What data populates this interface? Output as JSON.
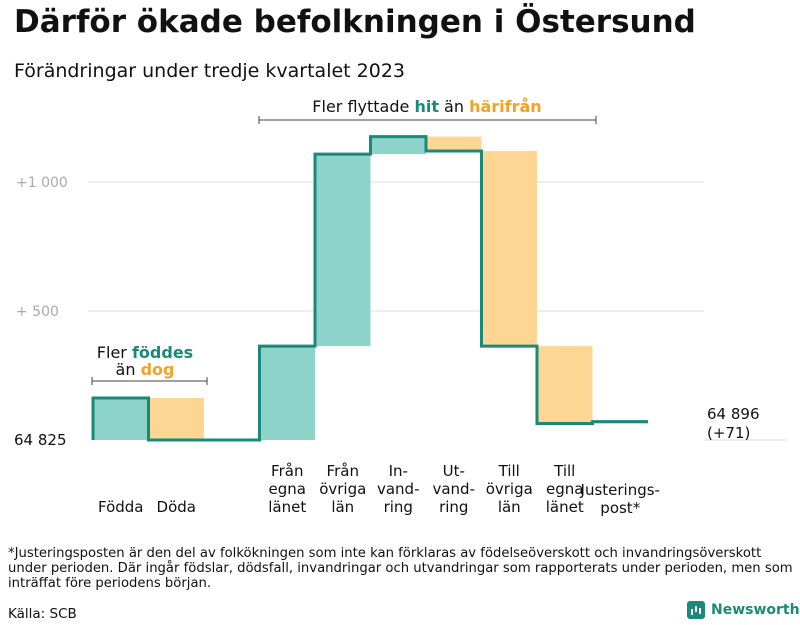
{
  "colors": {
    "positive": "#8dd3c9",
    "negative": "#fcd692",
    "step": "#178a7a",
    "grid": "#dddddd",
    "hit": "#178a7a",
    "harifran": "#f2a227",
    "bracket": "#444444",
    "tick_text": "#aaaaaa"
  },
  "chart_data": {
    "type": "waterfall",
    "title": "Därför ökade befolkningen i Östersund",
    "subtitle": "Förändringar under tredje kvartalet 2023",
    "baseline": {
      "label": "64  825",
      "value": 0
    },
    "end_label": [
      "64 896",
      "(+71)"
    ],
    "ylim": [
      -20,
      1210
    ],
    "yticks": [
      {
        "value": 1000,
        "label": "+1   000"
      },
      {
        "value": 500,
        "label": "+  500"
      }
    ],
    "steps": [
      {
        "label": [
          "Födda"
        ],
        "start": 0,
        "end": 163,
        "sign": "positive"
      },
      {
        "label": [
          "Döda"
        ],
        "start": 163,
        "end": 0,
        "sign": "negative"
      },
      {
        "label": [
          ""
        ],
        "start": 0,
        "end": 0,
        "sign": "positive"
      },
      {
        "label": [
          "Från",
          "egna",
          "länet"
        ],
        "start": 0,
        "end": 364,
        "sign": "positive"
      },
      {
        "label": [
          "Från",
          "övriga",
          "län"
        ],
        "start": 364,
        "end": 1108,
        "sign": "positive"
      },
      {
        "label": [
          "In-",
          "vand-",
          "ring"
        ],
        "start": 1108,
        "end": 1176,
        "sign": "positive"
      },
      {
        "label": [
          "Ut-",
          "vand-",
          "ring"
        ],
        "start": 1176,
        "end": 1120,
        "sign": "negative"
      },
      {
        "label": [
          "Till",
          "övriga",
          "län"
        ],
        "start": 1120,
        "end": 364,
        "sign": "negative"
      },
      {
        "label": [
          "Till",
          "egna",
          "länet"
        ],
        "start": 364,
        "end": 64,
        "sign": "negative"
      },
      {
        "label": [
          "Justerings-",
          "post*"
        ],
        "start": 64,
        "end": 71,
        "sign": "positive"
      }
    ],
    "annotations": [
      {
        "name": "births-annotation",
        "lines": [
          [
            "Fler ",
            "föddes"
          ],
          [
            "än ",
            "dog"
          ]
        ]
      },
      {
        "name": "migration-annotation",
        "lines": [
          [
            "Fler flyttade ",
            "hit",
            " än ",
            "härifrån"
          ]
        ]
      }
    ]
  },
  "footnote": "*Justeringsposten är den del av folkökningen som inte kan förklaras av födelseöverskott och invandringsöverskott under perioden. Där ingår födslar, dödsfall, invandringar och utvandringar som rapporterats under perioden, men som inträffat före periodens början.",
  "source": "Källa: SCB",
  "brand": "Newsworthy"
}
